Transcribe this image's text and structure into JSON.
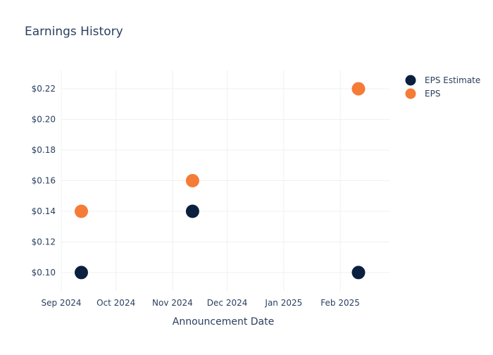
{
  "chart_data": {
    "type": "scatter",
    "title": "Earnings History",
    "xlabel": "Announcement Date",
    "ylabel": "",
    "x_axis": {
      "kind": "date",
      "range": [
        "2024-09-01",
        "2025-02-28"
      ],
      "ticks": [
        {
          "date": "2024-09-01",
          "label": "Sep 2024"
        },
        {
          "date": "2024-10-01",
          "label": "Oct 2024"
        },
        {
          "date": "2024-11-01",
          "label": "Nov 2024"
        },
        {
          "date": "2024-12-01",
          "label": "Dec 2024"
        },
        {
          "date": "2025-01-01",
          "label": "Jan 2025"
        },
        {
          "date": "2025-02-01",
          "label": "Feb 2025"
        }
      ]
    },
    "y_axis": {
      "range": [
        0.088,
        0.232
      ],
      "ticks": [
        {
          "value": 0.1,
          "label": "$0.10"
        },
        {
          "value": 0.12,
          "label": "$0.12"
        },
        {
          "value": 0.14,
          "label": "$0.14"
        },
        {
          "value": 0.16,
          "label": "$0.16"
        },
        {
          "value": 0.18,
          "label": "$0.18"
        },
        {
          "value": 0.2,
          "label": "$0.20"
        },
        {
          "value": 0.22,
          "label": "$0.22"
        }
      ]
    },
    "grid": true,
    "legend_position": "top-right",
    "series": [
      {
        "name": "EPS Estimate",
        "color": "#0b1f3f",
        "points": [
          {
            "x": "2024-09-12",
            "y": 0.1
          },
          {
            "x": "2024-11-12",
            "y": 0.14
          },
          {
            "x": "2025-02-11",
            "y": 0.1
          }
        ]
      },
      {
        "name": "EPS",
        "color": "#f47c36",
        "points": [
          {
            "x": "2024-09-12",
            "y": 0.14
          },
          {
            "x": "2024-11-12",
            "y": 0.16
          },
          {
            "x": "2025-02-11",
            "y": 0.22
          }
        ]
      }
    ]
  },
  "colors": {
    "text": "#2a3f5f",
    "grid": "#eef0f3"
  }
}
